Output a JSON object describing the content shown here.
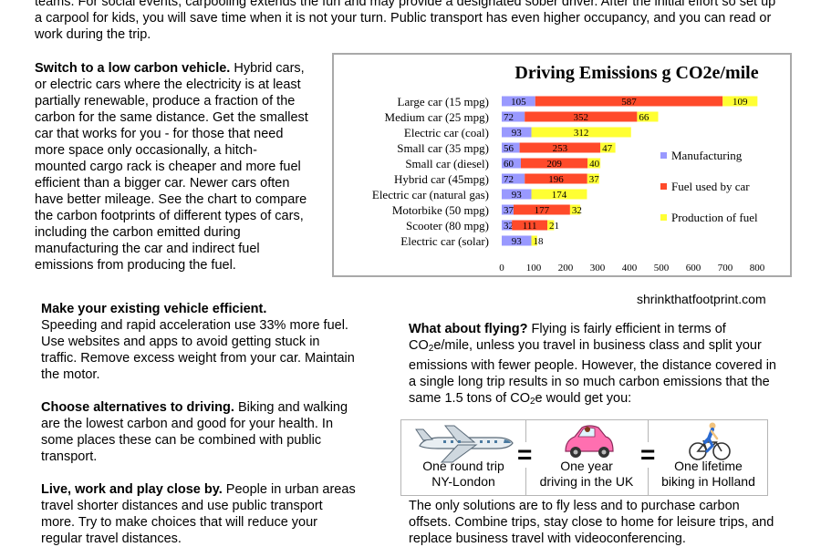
{
  "intro": {
    "line1_end": "teams.  For social events, carpooling extends the fun and may provide a designated sober driver.  After the initial effort so set up a carpool for kids, you will save time when it is not your turn.  Public transport has even higher occupancy, and you can read or work during the trip."
  },
  "vehicle": {
    "heading": "Switch to a low carbon vehicle.",
    "body": " Hybrid cars, or electric cars where the electricity is at least partially renewable, produce a fraction of the carbon for the same distance.  Get the smallest car that works for you - for those that need more space only occasionally, a hitch-mounted cargo rack is cheaper and more fuel efficient than a bigger car.  Newer cars often have better mileage.  See the chart to compare the carbon footprints of different types of cars, including the carbon emitted during manufacturing the car and indirect fuel emissions from producing the fuel."
  },
  "efficient": {
    "heading": "Make your existing vehicle efficient.",
    "body": "Speeding and rapid acceleration use 33% more fuel.  Use websites and apps to avoid getting stuck in traffic.  Remove excess weight from your car.  Maintain the motor."
  },
  "alternatives": {
    "heading": "Choose alternatives to driving.",
    "body": " Biking and walking are the lowest carbon and good for your health.  In some places these can be combined with public transport."
  },
  "close": {
    "heading": "Live, work and play close by.",
    "body": " People in urban areas travel shorter distances and use public transport more.  Try to make choices that will reduce your regular travel distances."
  },
  "flying": {
    "heading": "What about flying?",
    "body": "  Flying is fairly efficient in terms of CO2e/mile, unless you travel in business class and split your emissions with fewer people.  However, the distance covered in a single long trip results in so much carbon emissions that the same 1.5 tons of CO2e would get you:"
  },
  "solutions": {
    "body": "The only solutions are to fly less and to purchase carbon offsets.  Combine trips, stay close to home for leisure trips, and replace business travel with videoconferencing."
  },
  "source": "shrinkthatfootprint.com",
  "comparison": {
    "items": [
      {
        "icon": "airplane-icon",
        "line1": "One round trip",
        "line2": "NY-London"
      },
      {
        "icon": "car-icon",
        "line1": "One year",
        "line2": "driving in the UK"
      },
      {
        "icon": "cyclist-icon",
        "line1": "One lifetime",
        "line2": "biking in Holland"
      }
    ],
    "equals": "="
  },
  "chart_data": {
    "type": "bar",
    "stacked": true,
    "orientation": "horizontal",
    "title": "Driving Emissions g CO2e/mile",
    "categories": [
      "Large car (15 mpg)",
      "Medium car (25 mpg)",
      "Electric car (coal)",
      "Small car (35 mpg)",
      "Small car (diesel)",
      "Hybrid car (45mpg)",
      "Electric car (natural gas)",
      "Motorbike (50 mpg)",
      "Scooter (80 mpg)",
      "Electric car (solar)"
    ],
    "series": [
      {
        "name": "Manufacturing",
        "color": "#9999ff",
        "values": [
          105,
          72,
          93,
          56,
          60,
          72,
          93,
          37,
          32,
          93
        ],
        "labels": [
          "105",
          "72",
          "93",
          "56",
          "60",
          "72",
          "93",
          "37",
          "32",
          "93"
        ]
      },
      {
        "name": "Fuel used by car",
        "color": "#ff4a2a",
        "values": [
          587,
          352,
          0,
          253,
          209,
          196,
          0,
          177,
          111,
          0
        ],
        "labels": [
          "587",
          "352",
          "",
          "253",
          "209",
          "196",
          "",
          "177",
          "111",
          ""
        ]
      },
      {
        "name": "Production of fuel",
        "color": "#ffff33",
        "values": [
          109,
          66,
          312,
          47,
          40,
          37,
          174,
          32,
          21,
          18
        ],
        "labels": [
          "109",
          "66",
          "312",
          "47",
          "40",
          "37",
          "174",
          "32",
          "21",
          "18"
        ]
      }
    ],
    "xlim": [
      0,
      800
    ],
    "xticks": [
      "0",
      "100",
      "200",
      "300",
      "400",
      "500",
      "600",
      "700",
      "800"
    ],
    "legend_position": "right"
  }
}
